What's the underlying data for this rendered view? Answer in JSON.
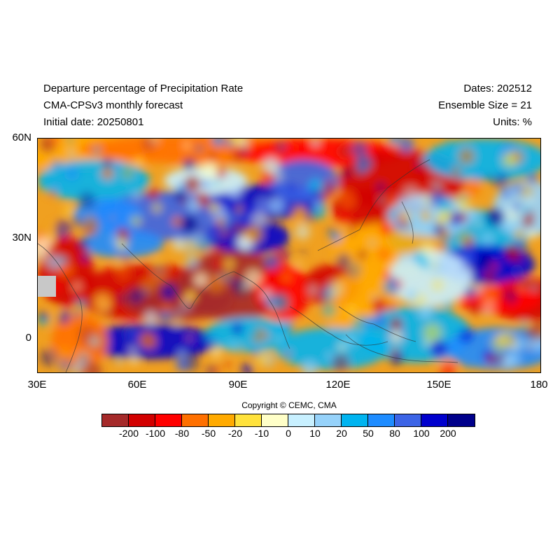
{
  "header": {
    "title": "Departure percentage of Precipitation Rate",
    "model": "CMA-CPSv3 monthly forecast",
    "initial_date": "Initial date: 20250801",
    "dates": "Dates: 202512",
    "ensemble": "Ensemble Size = 21",
    "units": "Units: %"
  },
  "map": {
    "lat_labels": [
      "60N",
      "30N",
      "0"
    ],
    "lon_labels": [
      "30E",
      "60E",
      "90E",
      "120E",
      "150E",
      "180"
    ],
    "lat_range": [
      -10,
      60
    ],
    "lon_range": [
      30,
      180
    ]
  },
  "copyright": "Copyright © CEMC, CMA",
  "colorbar": {
    "colors": [
      "#a52a2a",
      "#d20000",
      "#ff0000",
      "#ff7000",
      "#ffaa00",
      "#ffe23c",
      "#ffffc8",
      "#c8f0ff",
      "#96d2fa",
      "#00b4f0",
      "#1e8cff",
      "#3c64e6",
      "#0000cd",
      "#00008b"
    ],
    "labels": [
      "-200",
      "-100",
      "-80",
      "-50",
      "-20",
      "-10",
      "0",
      "10",
      "20",
      "50",
      "80",
      "100",
      "200"
    ]
  }
}
